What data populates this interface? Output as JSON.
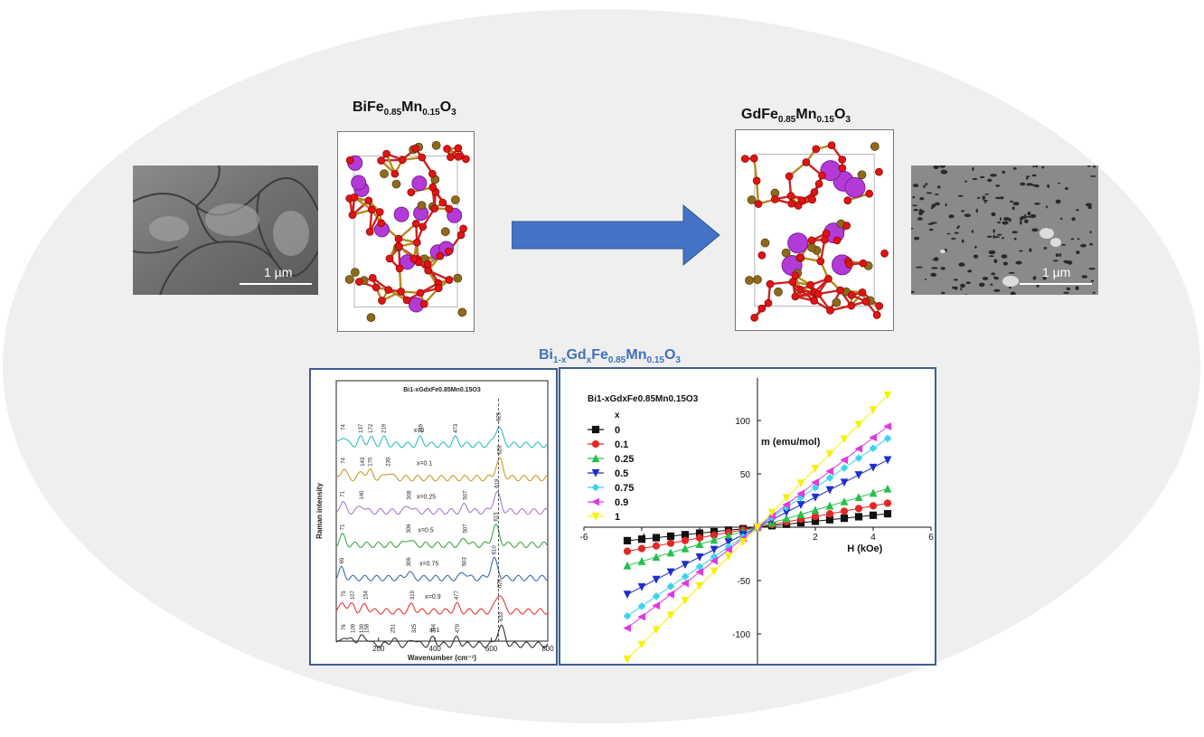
{
  "left_compound": {
    "base": "BiFe",
    "sub1": "0.85",
    "mid": "Mn",
    "sub2": "0.15",
    "tail": "O",
    "sub3": "3"
  },
  "right_compound": {
    "base": "GdFe",
    "sub1": "0.85",
    "mid": "Mn",
    "sub2": "0.15",
    "tail": "O",
    "sub3": "3"
  },
  "scale_bar_label": "1 µm",
  "series_title": {
    "a": "Bi",
    "s1": "1-x",
    "b": "Gd",
    "s2": "x",
    "c": "Fe",
    "s3": "0.85",
    "d": "Mn",
    "s4": "0.15",
    "e": "O",
    "s5": "3"
  },
  "colors": {
    "arrow": "#4472c4",
    "panel_border": "#3d5f94",
    "title_blue": "#3f73b7"
  },
  "raman": {
    "xlabel": "Wavenumber (cm⁻¹)",
    "ylabel": "Raman intensity",
    "inner_title": "Bi1-xGdxFe0.85Mn0.15O3",
    "xticks": [
      "200",
      "400",
      "600",
      "800"
    ],
    "xlim": [
      50,
      800
    ],
    "dashed_line_x": 625,
    "spectra": [
      {
        "label": "x=0",
        "color": "#2fbfb8",
        "label_x": 325,
        "peaks": [
          {
            "v": 74,
            "t": "74"
          },
          {
            "v": 137,
            "t": "137"
          },
          {
            "v": 172,
            "t": "172"
          },
          {
            "v": 219,
            "t": "219"
          },
          {
            "v": 349,
            "t": "349"
          },
          {
            "v": 473,
            "t": "473"
          },
          {
            "v": 625,
            "t": "625"
          }
        ]
      },
      {
        "label": "x=0.1",
        "color": "#c89b2a",
        "label_x": 335,
        "peaks": [
          {
            "v": 74,
            "t": "74"
          },
          {
            "v": 143,
            "t": "143"
          },
          {
            "v": 170,
            "t": "170"
          },
          {
            "v": 235,
            "t": "235"
          },
          {
            "v": 628,
            "t": "628"
          }
        ]
      },
      {
        "label": "x=0.25",
        "color": "#a57cc7",
        "label_x": 335,
        "peaks": [
          {
            "v": 71,
            "t": "71"
          },
          {
            "v": 140,
            "t": "140"
          },
          {
            "v": 308,
            "t": "308"
          },
          {
            "v": 507,
            "t": "507"
          },
          {
            "v": 619,
            "t": "619"
          }
        ]
      },
      {
        "label": "x=0.5",
        "color": "#3fa44a",
        "label_x": 340,
        "peaks": [
          {
            "v": 71,
            "t": "71"
          },
          {
            "v": 306,
            "t": "306"
          },
          {
            "v": 507,
            "t": "507"
          },
          {
            "v": 615,
            "t": "615"
          }
        ]
      },
      {
        "label": "x=0.75",
        "color": "#3f68b0",
        "label_x": 345,
        "peaks": [
          {
            "v": 69,
            "t": "69"
          },
          {
            "v": 306,
            "t": "306"
          },
          {
            "v": 503,
            "t": "503"
          },
          {
            "v": 610,
            "t": "610"
          }
        ]
      },
      {
        "label": "x=0.9",
        "color": "#e23a36",
        "label_x": 365,
        "peaks": [
          {
            "v": 75,
            "t": "75"
          },
          {
            "v": 107,
            "t": "107"
          },
          {
            "v": 154,
            "t": "154"
          },
          {
            "v": 319,
            "t": "319"
          },
          {
            "v": 477,
            "t": "477"
          },
          {
            "v": 628,
            "t": "628"
          }
        ]
      },
      {
        "label": "x=1",
        "color": "#333333",
        "label_x": 380,
        "peaks": [
          {
            "v": 76,
            "t": "76"
          },
          {
            "v": 109,
            "t": "109"
          },
          {
            "v": 139,
            "t": "139"
          },
          {
            "v": 158,
            "t": "158"
          },
          {
            "v": 251,
            "t": "251"
          },
          {
            "v": 325,
            "t": "325"
          },
          {
            "v": 394,
            "t": "394"
          },
          {
            "v": 479,
            "t": "479"
          },
          {
            "v": 633,
            "t": "633"
          }
        ]
      }
    ]
  },
  "chart_data": {
    "type": "line",
    "legend_title": "Bi1-xGdxFe0.85Mn0.15O3",
    "legend_header": "x",
    "xlabel": "H (kOe)",
    "ylabel": "m (emu/mol)",
    "xlim": [
      -6,
      6
    ],
    "ylim": [
      -140,
      140
    ],
    "xticks": [
      -6,
      -4,
      -2,
      0,
      2,
      4,
      6
    ],
    "yticks": [
      -100,
      -50,
      0,
      50,
      100
    ],
    "legend_position": "top-left",
    "series": [
      {
        "name": "0",
        "color": "#111111",
        "marker": "square",
        "slope": 2.8
      },
      {
        "name": "0.1",
        "color": "#e32626",
        "marker": "circle",
        "slope": 5.0
      },
      {
        "name": "0.25",
        "color": "#22c14a",
        "marker": "triangle-up",
        "slope": 8.0
      },
      {
        "name": "0.5",
        "color": "#1f2fcc",
        "marker": "triangle-down",
        "slope": 14.0
      },
      {
        "name": "0.75",
        "color": "#3ad4f0",
        "marker": "diamond",
        "slope": 18.5
      },
      {
        "name": "0.9",
        "color": "#e03ae0",
        "marker": "triangle-left",
        "slope": 21.0
      },
      {
        "name": "1",
        "color": "#f5f20a",
        "marker": "triangle-down",
        "slope": 27.5
      }
    ],
    "h_values": [
      -4.5,
      -4.0,
      -3.5,
      -3.0,
      -2.5,
      -2.0,
      -1.5,
      -1.0,
      -0.5,
      0,
      0.5,
      1.0,
      1.5,
      2.0,
      2.5,
      3.0,
      3.5,
      4.0,
      4.5
    ]
  }
}
